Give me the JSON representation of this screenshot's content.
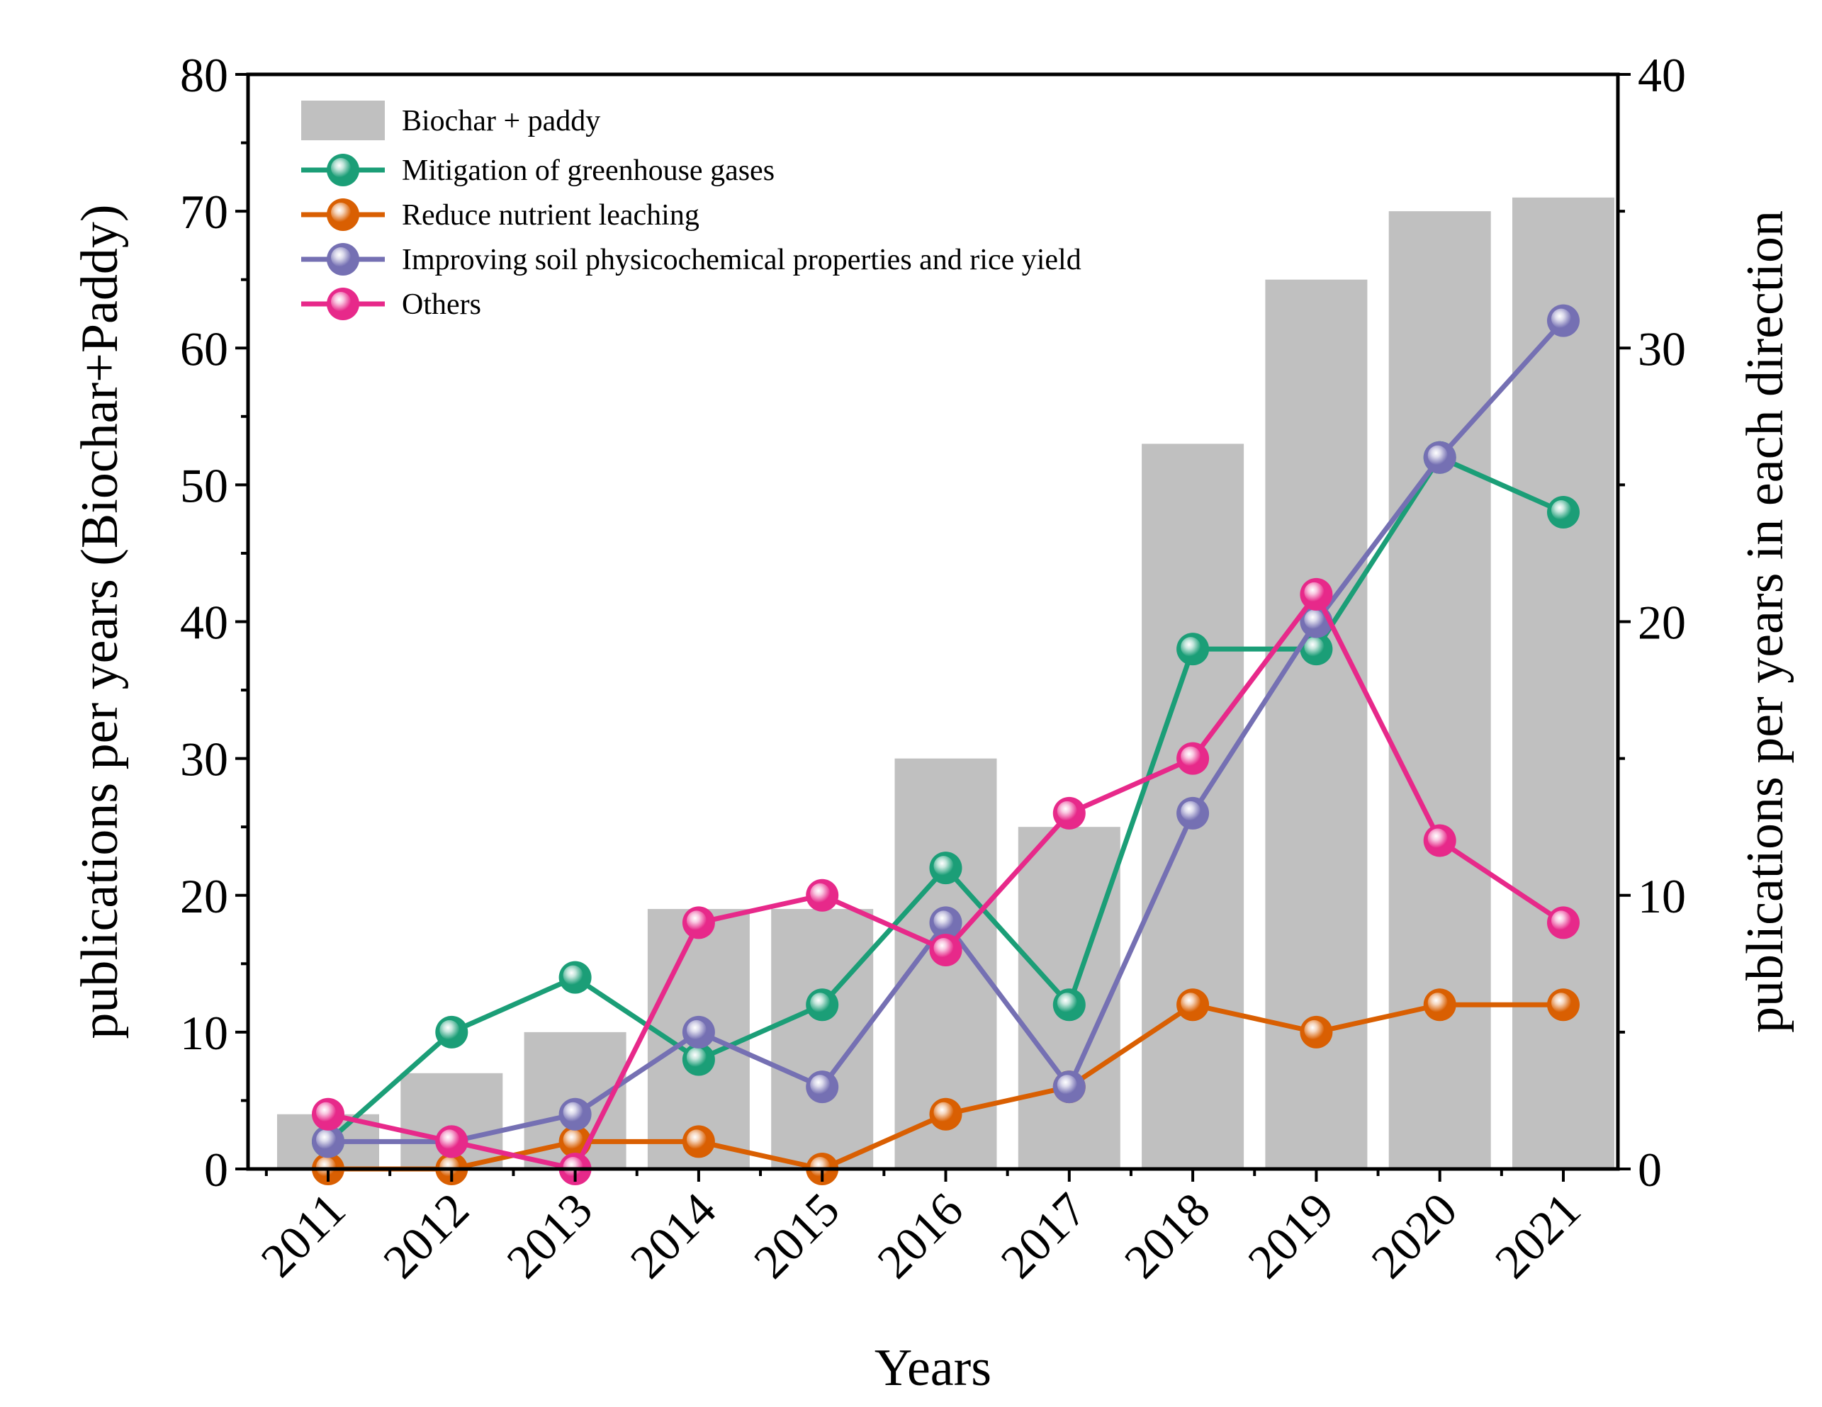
{
  "chart_data": {
    "type": "bar+line",
    "categories": [
      "2011",
      "2012",
      "2013",
      "2014",
      "2015",
      "2016",
      "2017",
      "2018",
      "2019",
      "2020",
      "2021"
    ],
    "xlabel": "Years",
    "ylabel_left": "publications per years (Biochar+Paddy)",
    "ylabel_right": "publications per years in each direction",
    "ylim_left": [
      0,
      80
    ],
    "ylim_right": [
      0,
      40
    ],
    "yticks_left": [
      0,
      10,
      20,
      30,
      40,
      50,
      60,
      70,
      80
    ],
    "yticks_right": [
      0,
      10,
      20,
      30,
      40
    ],
    "legend_position": "top-left",
    "bar_series": {
      "name": "Biochar + paddy",
      "axis": "left",
      "color": "#c0c0c0",
      "values": [
        4,
        7,
        10,
        19,
        19,
        30,
        25,
        53,
        65,
        70,
        71
      ]
    },
    "line_series": [
      {
        "name": "Mitigation of greenhouse gases",
        "axis": "right",
        "color": "#1b9e77",
        "values": [
          1,
          5,
          7,
          4,
          6,
          11,
          6,
          19,
          19,
          26,
          24
        ]
      },
      {
        "name": "Reduce nutrient leaching",
        "axis": "right",
        "color": "#d95f02",
        "values": [
          0,
          0,
          1,
          1,
          0,
          2,
          3,
          6,
          5,
          6,
          6
        ]
      },
      {
        "name": "Improving soil physicochemical properties and rice yield",
        "axis": "right",
        "color": "#7570b3",
        "values": [
          1,
          1,
          2,
          5,
          3,
          9,
          3,
          13,
          20,
          26,
          31
        ]
      },
      {
        "name": "Others",
        "axis": "right",
        "color": "#e7298a",
        "values": [
          2,
          1,
          0,
          9,
          10,
          8,
          13,
          15,
          21,
          12,
          9
        ]
      }
    ]
  }
}
